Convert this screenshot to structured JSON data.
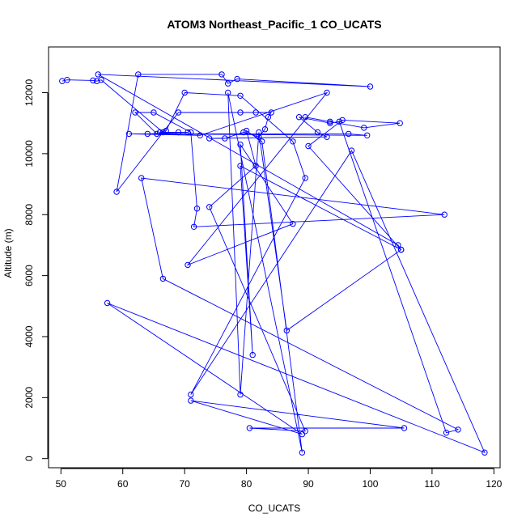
{
  "chart_data": {
    "type": "line",
    "title": "ATOM3 Northeast_Pacific_1 CO_UCATS",
    "xlabel": "CO_UCATS",
    "ylabel": "Altitude (m)",
    "xlim": [
      48,
      121
    ],
    "ylim": [
      -300,
      13500
    ],
    "x_ticks": [
      50,
      60,
      70,
      80,
      90,
      100,
      110,
      120
    ],
    "y_ticks": [
      0,
      2000,
      4000,
      6000,
      8000,
      10000,
      12000
    ],
    "grid": false,
    "marker": "open-circle",
    "series": [
      {
        "color": "#0000ff",
        "points": [
          [
            50.2,
            12380
          ],
          [
            51.0,
            12420
          ],
          [
            55.2,
            12400
          ],
          [
            55.8,
            12380
          ],
          [
            56.5,
            12420
          ],
          [
            66.5,
            10700
          ],
          [
            65.5,
            10650
          ],
          [
            62.0,
            11350
          ],
          [
            65.0,
            11350
          ],
          [
            71.0,
            10700
          ],
          [
            72.0,
            8200
          ],
          [
            71.5,
            7600
          ],
          [
            112.0,
            8000
          ],
          [
            63.0,
            9200
          ],
          [
            66.5,
            5900
          ],
          [
            114.2,
            950
          ],
          [
            112.3,
            850
          ],
          [
            95.0,
            11050
          ],
          [
            93.5,
            11000
          ],
          [
            88.5,
            11200
          ],
          [
            91.5,
            10700
          ],
          [
            93.0,
            10550
          ],
          [
            74.0,
            10500
          ],
          [
            76.5,
            10500
          ],
          [
            79.5,
            10700
          ],
          [
            82.0,
            10550
          ],
          [
            83.0,
            10800
          ],
          [
            83.5,
            11200
          ],
          [
            84.0,
            11350
          ],
          [
            81.5,
            11350
          ],
          [
            79.0,
            11350
          ],
          [
            69.0,
            11350
          ],
          [
            59.0,
            8750
          ],
          [
            62.5,
            12600
          ],
          [
            76.0,
            12600
          ],
          [
            77.0,
            12300
          ],
          [
            78.5,
            12450
          ],
          [
            100.0,
            12200
          ],
          [
            56.0,
            12600
          ],
          [
            104.5,
            7000
          ],
          [
            105.0,
            6850
          ],
          [
            79.0,
            9600
          ],
          [
            81.0,
            3400
          ],
          [
            79.0,
            10300
          ],
          [
            87.5,
            7700
          ],
          [
            70.5,
            6350
          ],
          [
            93.0,
            12000
          ],
          [
            72.5,
            10600
          ],
          [
            61.0,
            10650
          ],
          [
            96.5,
            10650
          ],
          [
            99.5,
            10600
          ],
          [
            64.0,
            10650
          ],
          [
            70.5,
            10700
          ],
          [
            69.0,
            10700
          ],
          [
            66.0,
            10700
          ],
          [
            67.0,
            10750
          ],
          [
            70.0,
            12000
          ],
          [
            79.0,
            11900
          ],
          [
            87.5,
            10400
          ],
          [
            89.5,
            9200
          ],
          [
            71.0,
            2100
          ],
          [
            97.0,
            10100
          ],
          [
            118.5,
            200
          ],
          [
            57.5,
            5100
          ],
          [
            89.0,
            800
          ],
          [
            71.0,
            1900
          ],
          [
            105.5,
            1000
          ],
          [
            80.5,
            1000
          ],
          [
            89.5,
            900
          ],
          [
            74.0,
            8250
          ],
          [
            81.5,
            9600
          ],
          [
            80.0,
            10750
          ],
          [
            82.5,
            10400
          ],
          [
            89.0,
            200
          ],
          [
            77.0,
            12000
          ],
          [
            79.0,
            2100
          ],
          [
            82.0,
            10700
          ],
          [
            86.5,
            4200
          ],
          [
            105.0,
            6850
          ],
          [
            90.0,
            10250
          ],
          [
            95.5,
            11100
          ],
          [
            104.8,
            11000
          ],
          [
            99.0,
            10850
          ],
          [
            93.5,
            11050
          ],
          [
            89.5,
            11200
          ]
        ]
      }
    ]
  }
}
